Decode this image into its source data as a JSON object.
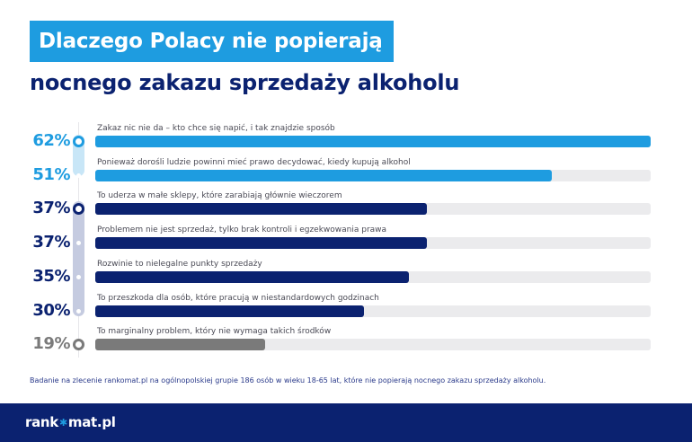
{
  "header": {
    "title_line1": "Dlaczego Polacy nie popierają",
    "title_line2": "nocnego zakazu sprzedaży alkoholu"
  },
  "colors": {
    "light_blue": "#1e9ce0",
    "navy": "#0b2270",
    "gray": "#7a7a7a",
    "track": "#ebebed"
  },
  "chart_data": {
    "type": "bar",
    "orientation": "horizontal",
    "title": "Dlaczego Polacy nie popierają nocnego zakazu sprzedaży alkoholu",
    "xlabel": "",
    "ylabel": "",
    "xlim": [
      0,
      62
    ],
    "unit": "%",
    "categories": [
      "Zakaz nic nie da – kto chce się napić, i tak znajdzie sposób",
      "Ponieważ dorośli ludzie powinni mieć prawo decydować, kiedy kupują alkohol",
      "To uderza w małe sklepy, które zarabiają głównie wieczorem",
      "Problemem nie jest sprzedaż, tylko brak kontroli i egzekwowania prawa",
      "Rozwinie to nielegalne punkty sprzedaży",
      "To przeszkoda dla osób, które pracują w niestandardowych godzinach",
      "To marginalny problem, który nie wymaga takich środków"
    ],
    "values": [
      62,
      51,
      37,
      37,
      35,
      30,
      19
    ],
    "value_labels": [
      "62%",
      "51%",
      "37%",
      "37%",
      "35%",
      "30%",
      "19%"
    ],
    "groups": [
      "light",
      "light",
      "navy",
      "navy",
      "navy",
      "navy",
      "gray"
    ],
    "grid": false,
    "legend": null
  },
  "note": "Badanie na zlecenie rankomat.pl na ogólnopolskiej grupie 186 osób w wieku 18-65 lat, które nie popierają nocnego zakazu sprzedaży alkoholu.",
  "footer": {
    "logo_left": "rank",
    "logo_icon": "star-icon",
    "logo_right": "mat.pl"
  }
}
